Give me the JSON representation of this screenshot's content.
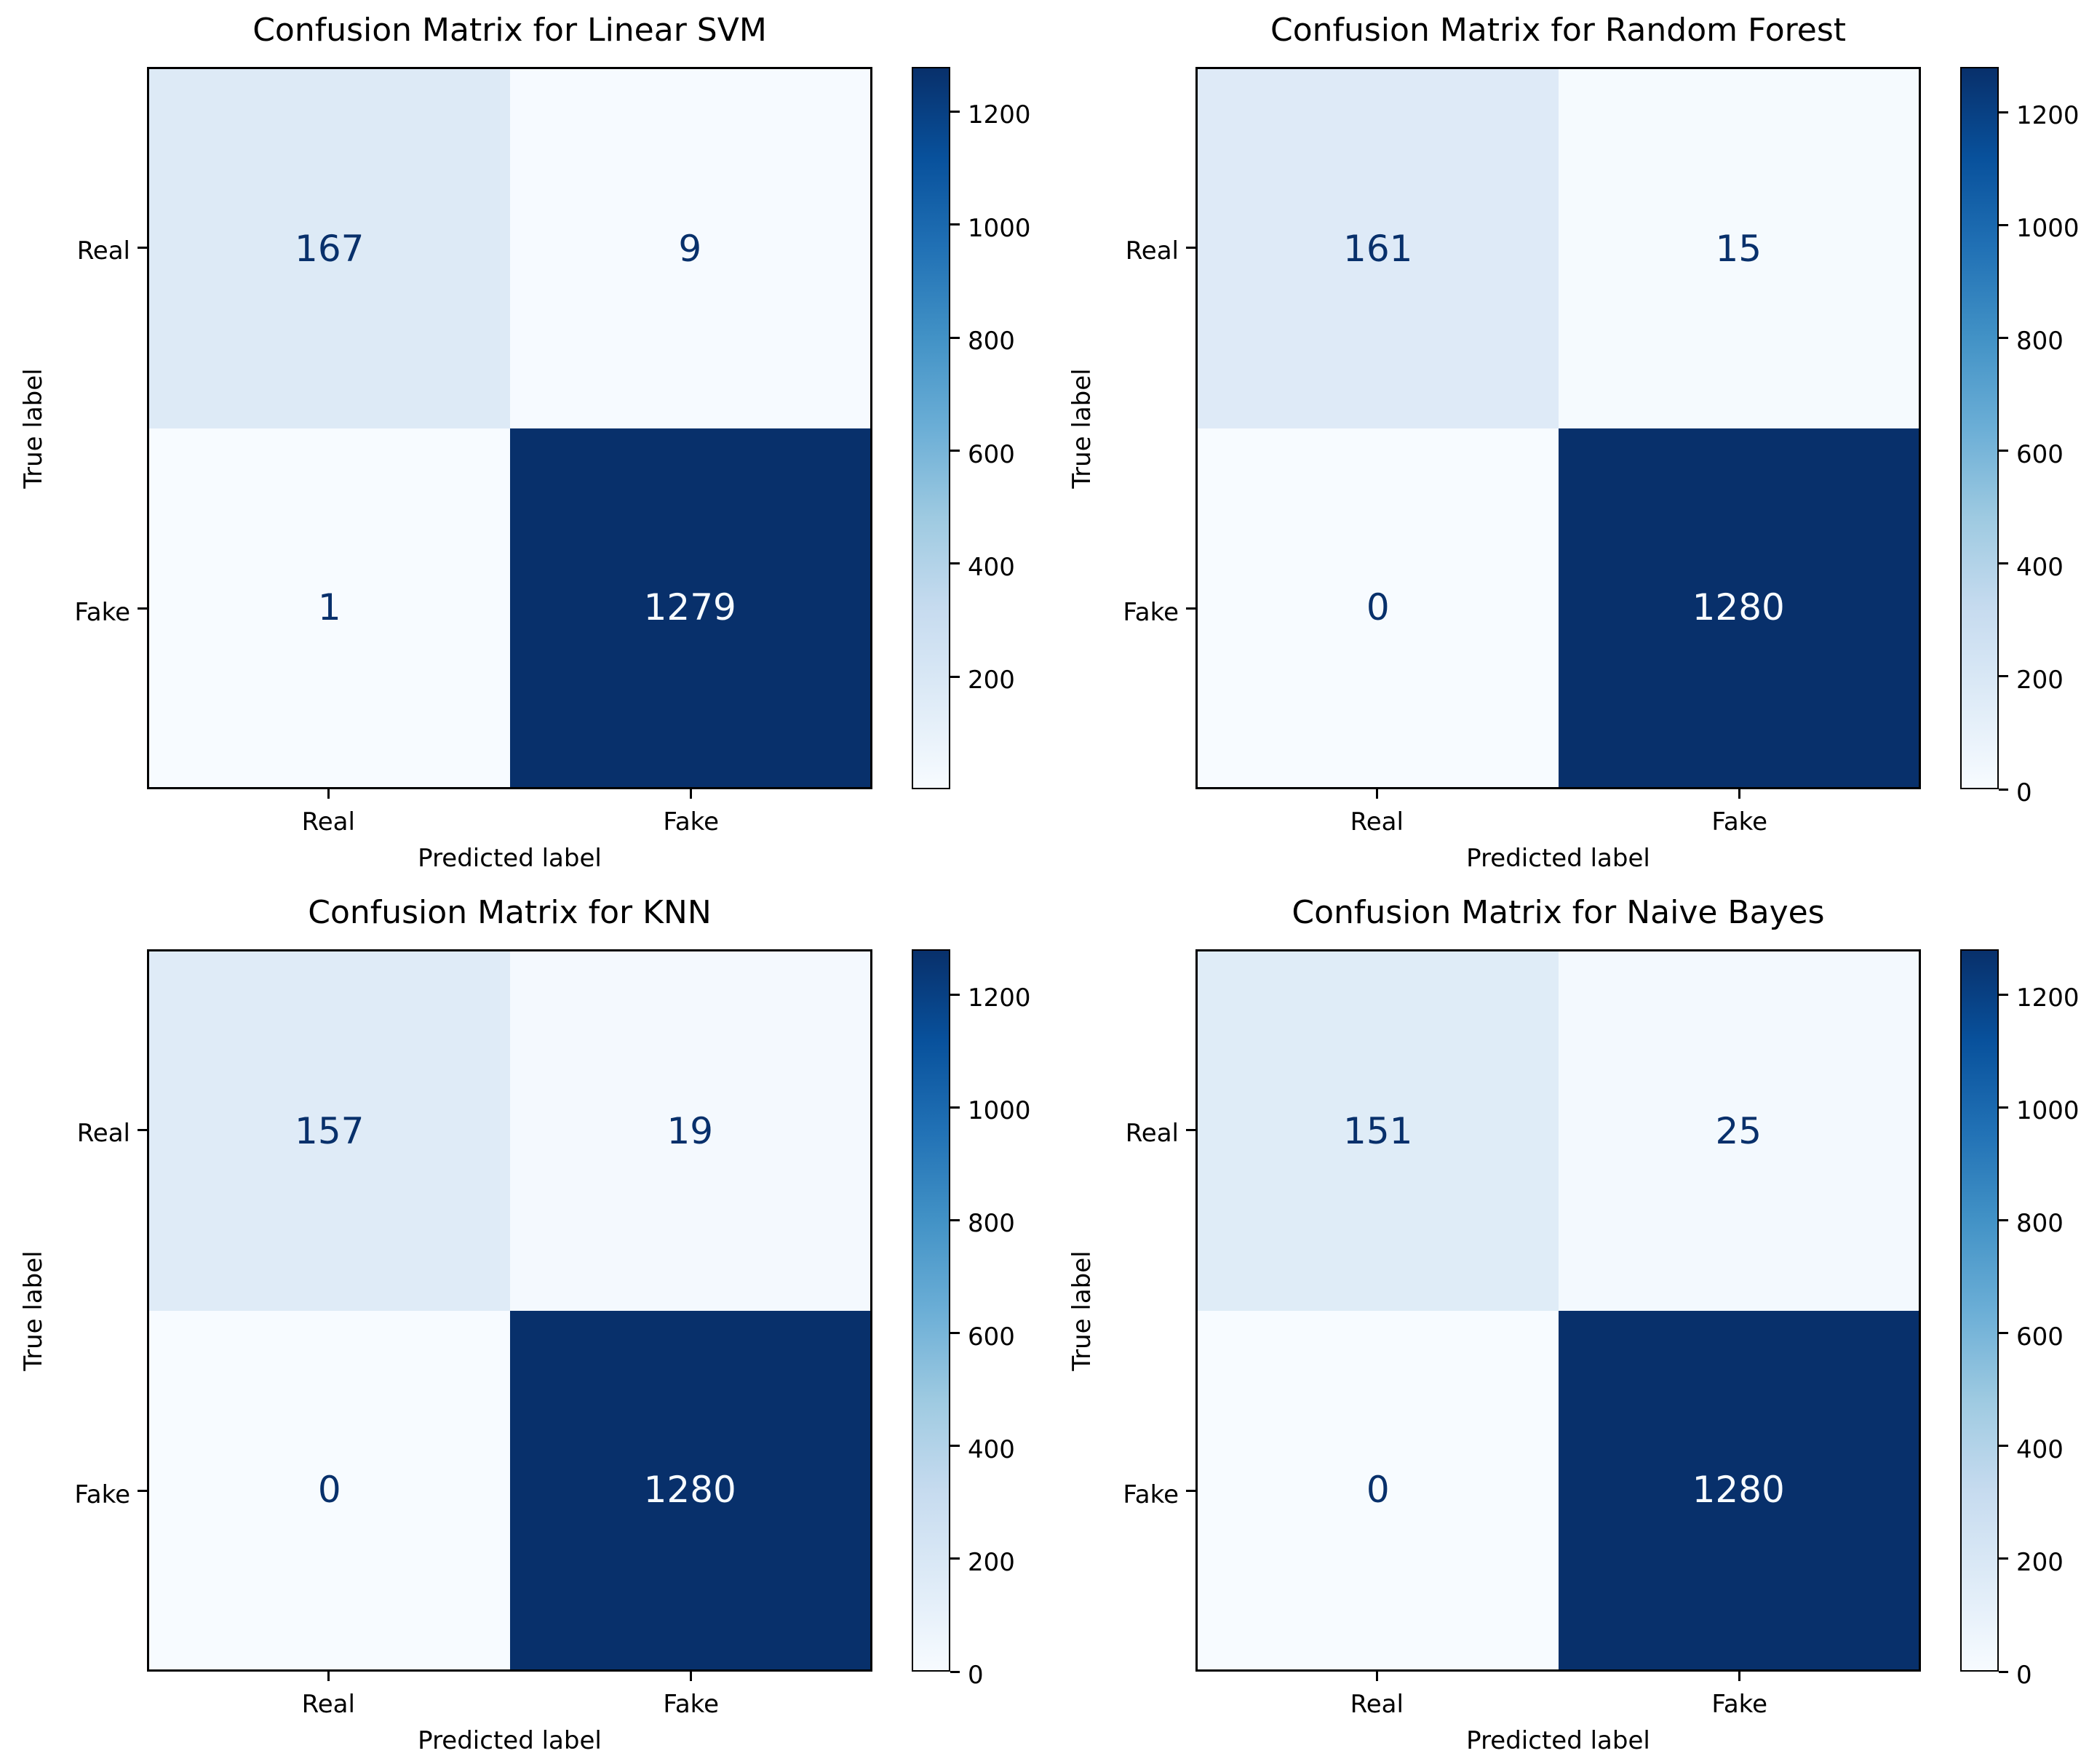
{
  "figure": {
    "background": "#ffffff",
    "shared_xlabel": "Predicted label",
    "shared_ylabel": "True label",
    "class_labels": [
      "Real",
      "Fake"
    ]
  },
  "colors": {
    "colormap_name": "Blues",
    "colormap_stops": [
      "#f7fbff",
      "#deebf7",
      "#c6dbef",
      "#9ecae1",
      "#6baed6",
      "#4292c6",
      "#2171b5",
      "#08519c",
      "#08306b"
    ],
    "cell_text_dark": "#08306b",
    "cell_text_light": "#f7fbff",
    "axis_text": "#000000",
    "spine": "#000000"
  },
  "chart_data": [
    {
      "type": "heatmap",
      "title": "Confusion Matrix for Linear SVM",
      "xlabel": "Predicted label",
      "ylabel": "True label",
      "x_categories": [
        "Real",
        "Fake"
      ],
      "y_categories": [
        "Real",
        "Fake"
      ],
      "matrix": [
        [
          167,
          9
        ],
        [
          1,
          1279
        ]
      ],
      "cell_colors": [
        [
          "#ddeaf6",
          "#f6faff"
        ],
        [
          "#f7fbff",
          "#08306b"
        ]
      ],
      "cell_text_colors": [
        [
          "#08306b",
          "#08306b"
        ],
        [
          "#08306b",
          "#f7fbff"
        ]
      ],
      "vmin": 1,
      "vmax": 1279,
      "colorbar_ticks": [
        1200,
        1000,
        800,
        600,
        400,
        200
      ],
      "legend_position": "right-colorbar",
      "grid": false
    },
    {
      "type": "heatmap",
      "title": "Confusion Matrix for Random Forest",
      "xlabel": "Predicted label",
      "ylabel": "True label",
      "x_categories": [
        "Real",
        "Fake"
      ],
      "y_categories": [
        "Real",
        "Fake"
      ],
      "matrix": [
        [
          161,
          15
        ],
        [
          0,
          1280
        ]
      ],
      "cell_colors": [
        [
          "#deeaf7",
          "#f5fafe"
        ],
        [
          "#f7fbff",
          "#08306b"
        ]
      ],
      "cell_text_colors": [
        [
          "#08306b",
          "#08306b"
        ],
        [
          "#08306b",
          "#f7fbff"
        ]
      ],
      "vmin": 0,
      "vmax": 1280,
      "colorbar_ticks": [
        1200,
        1000,
        800,
        600,
        400,
        200,
        0
      ],
      "legend_position": "right-colorbar",
      "grid": false
    },
    {
      "type": "heatmap",
      "title": "Confusion Matrix for KNN",
      "xlabel": "Predicted label",
      "ylabel": "True label",
      "x_categories": [
        "Real",
        "Fake"
      ],
      "y_categories": [
        "Real",
        "Fake"
      ],
      "matrix": [
        [
          157,
          19
        ],
        [
          0,
          1280
        ]
      ],
      "cell_colors": [
        [
          "#dfebf7",
          "#f4f9fe"
        ],
        [
          "#f7fbff",
          "#08306b"
        ]
      ],
      "cell_text_colors": [
        [
          "#08306b",
          "#08306b"
        ],
        [
          "#08306b",
          "#f7fbff"
        ]
      ],
      "vmin": 0,
      "vmax": 1280,
      "colorbar_ticks": [
        1200,
        1000,
        800,
        600,
        400,
        200,
        0
      ],
      "legend_position": "right-colorbar",
      "grid": false
    },
    {
      "type": "heatmap",
      "title": "Confusion Matrix for Naive Bayes",
      "xlabel": "Predicted label",
      "ylabel": "True label",
      "x_categories": [
        "Real",
        "Fake"
      ],
      "y_categories": [
        "Real",
        "Fake"
      ],
      "matrix": [
        [
          151,
          25
        ],
        [
          0,
          1280
        ]
      ],
      "cell_colors": [
        [
          "#dfecf7",
          "#f3f9fe"
        ],
        [
          "#f7fbff",
          "#08306b"
        ]
      ],
      "cell_text_colors": [
        [
          "#08306b",
          "#08306b"
        ],
        [
          "#08306b",
          "#f7fbff"
        ]
      ],
      "vmin": 0,
      "vmax": 1280,
      "colorbar_ticks": [
        1200,
        1000,
        800,
        600,
        400,
        200,
        0
      ],
      "legend_position": "right-colorbar",
      "grid": false
    }
  ]
}
